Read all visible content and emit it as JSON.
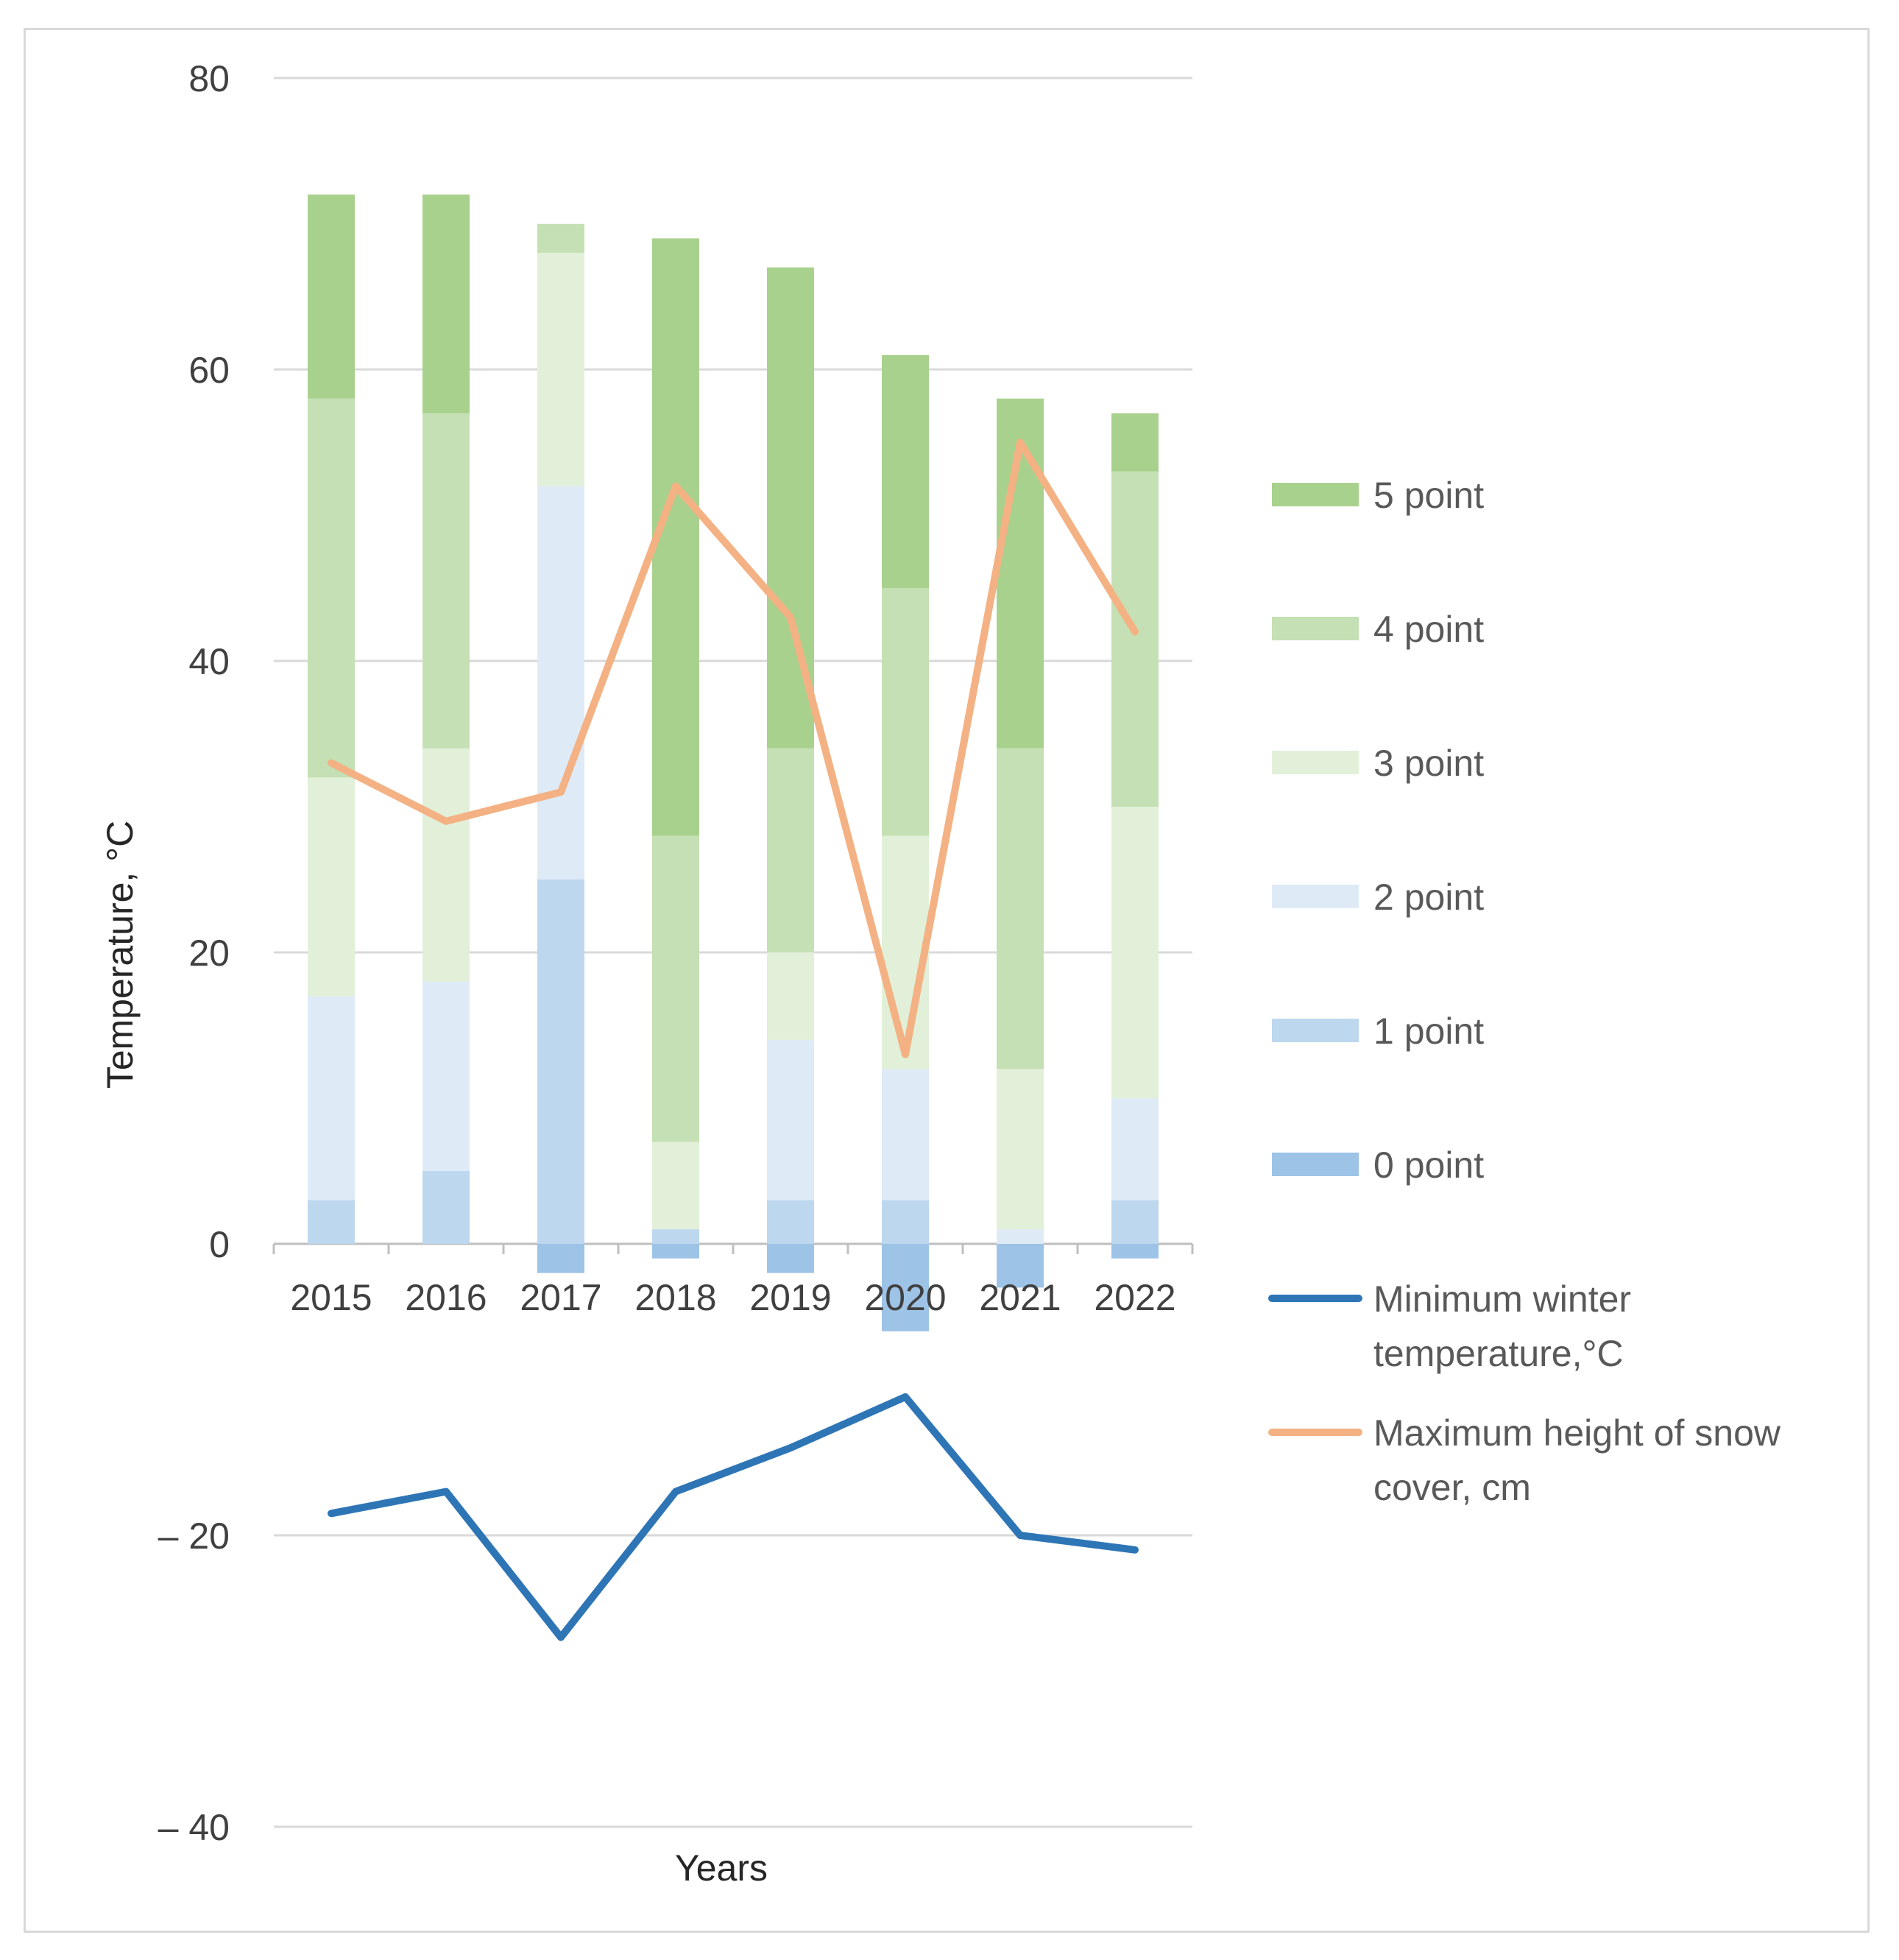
{
  "chart_data": {
    "type": "bar",
    "subtype": "stacked bar with lines",
    "title": "",
    "xlabel": "Years",
    "ylabel": "Temperature, °C",
    "ylim": [
      -40,
      80
    ],
    "yticks": [
      80,
      60,
      40,
      20,
      0,
      -20,
      -40
    ],
    "ytick_labels": [
      "80",
      "60",
      "40",
      "20",
      "0",
      "– 20",
      "– 40"
    ],
    "grid": true,
    "legend_position": "right",
    "categories": [
      "2015",
      "2016",
      "2017",
      "2018",
      "2019",
      "2020",
      "2021",
      "2022"
    ],
    "series": [
      {
        "name": "0 point",
        "kind": "bar",
        "color": "#9dc3e6",
        "values": [
          0,
          0,
          -2,
          -1,
          -2,
          -6,
          -3,
          -1
        ]
      },
      {
        "name": "1 point",
        "kind": "bar",
        "color": "#bdd7ee",
        "values": [
          3,
          5,
          25,
          1,
          3,
          3,
          0,
          3
        ]
      },
      {
        "name": "2 point",
        "kind": "bar",
        "color": "#deebf7",
        "values": [
          14,
          13,
          27,
          0,
          11,
          9,
          1,
          7
        ]
      },
      {
        "name": "3 point",
        "kind": "bar",
        "color": "#e2f0d9",
        "values": [
          15,
          16,
          16,
          6,
          6,
          16,
          11,
          20
        ]
      },
      {
        "name": "4 point",
        "kind": "bar",
        "color": "#c5e0b4",
        "values": [
          26,
          23,
          2,
          21,
          14,
          17,
          22,
          23
        ]
      },
      {
        "name": "5 point",
        "kind": "bar",
        "color": "#a9d18e",
        "values": [
          14,
          15,
          0,
          41,
          33,
          16,
          24,
          4
        ]
      },
      {
        "name": "Minimum winter temperature,°C",
        "kind": "line",
        "color": "#2e75b6",
        "values": [
          -18.5,
          -17,
          -27,
          -17,
          -14,
          -10.5,
          -20,
          -21
        ]
      },
      {
        "name": "Maximum height of snow cover, cm",
        "kind": "line",
        "color": "#f4b183",
        "values": [
          33,
          29,
          31,
          52,
          43,
          13,
          55,
          42
        ]
      }
    ]
  }
}
